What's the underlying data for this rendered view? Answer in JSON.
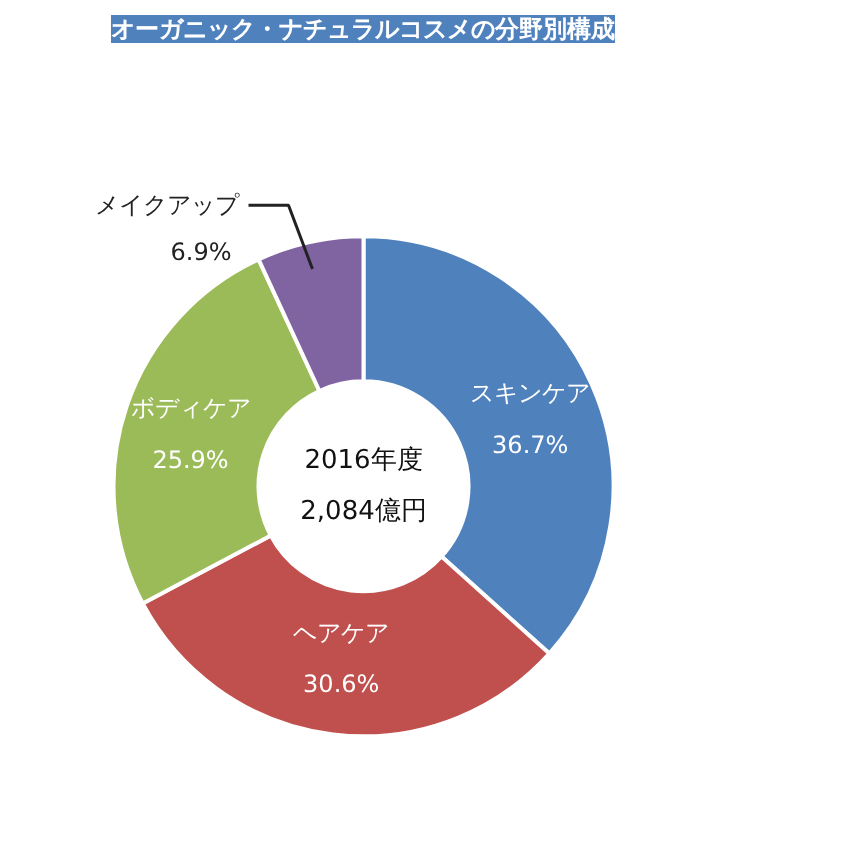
{
  "chart_data": {
    "type": "donut",
    "title": "オーガニック・ナチュラルコスメの分野別構成",
    "categories": [
      "スキンケア",
      "ヘアケア",
      "ボディケア",
      "メイクアップ"
    ],
    "values": [
      36.7,
      30.6,
      25.9,
      6.9
    ],
    "value_labels": [
      "36.7%",
      "30.6%",
      "25.9%",
      "6.9%"
    ],
    "colors": [
      "#4f81bd",
      "#c0504d",
      "#9bbb59",
      "#8064a2"
    ],
    "annotations": [
      "2016年度",
      "2,084億円"
    ]
  }
}
